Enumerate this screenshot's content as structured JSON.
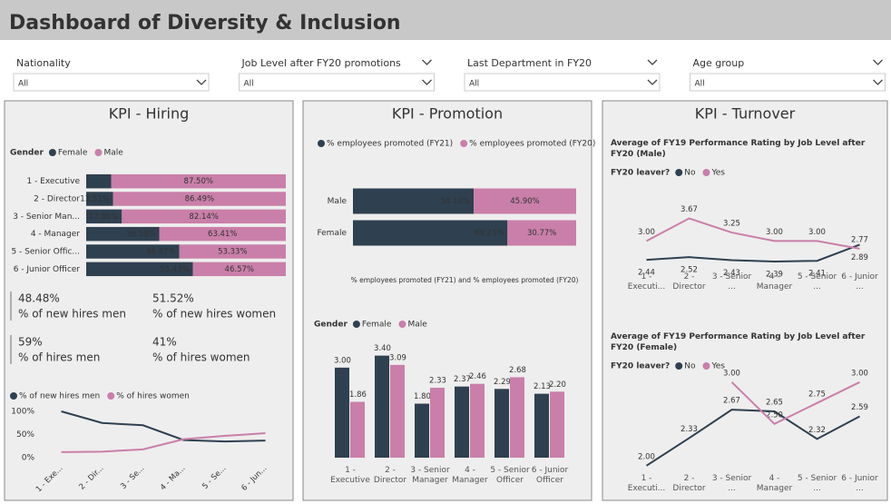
{
  "header": {
    "title": "Dashboard of Diversity & Inclusion"
  },
  "filters": [
    {
      "label": "Nationality",
      "value": "All"
    },
    {
      "label": "Job Level after FY20 promotions",
      "value": "All"
    },
    {
      "label": "Last Department in FY20",
      "value": "All"
    },
    {
      "label": "Age group",
      "value": "All"
    }
  ],
  "panels": [
    {
      "title": "KPI - Hiring"
    },
    {
      "title": "KPI - Promotion"
    },
    {
      "title": "KPI - Turnover"
    }
  ],
  "cards": [
    {
      "value": "48.48%",
      "label": "% of new hires men"
    },
    {
      "value": "51.52%",
      "label": "% of new hires women"
    },
    {
      "value": "59%",
      "label": "% of hires men"
    },
    {
      "value": "41%",
      "label": "% of hires women"
    }
  ],
  "chart_data": [
    {
      "type": "bar",
      "orientation": "horizontal",
      "stacked": true,
      "legend_title": "Gender",
      "categories": [
        "1 - Executive",
        "2 - Director",
        "3 - Senior Man...",
        "4 - Manager",
        "5 - Senior Offic...",
        "6 - Junior Officer"
      ],
      "series": [
        {
          "name": "Female",
          "color": "#2f4050",
          "values": [
            12.5,
            13.51,
            17.86,
            36.59,
            46.67,
            53.43
          ],
          "value_labels": [
            null,
            "13.51%",
            "17.86%",
            "36.59%",
            "46.67%",
            "53.43%"
          ]
        },
        {
          "name": "Male",
          "color": "#c97fa9",
          "values": [
            87.5,
            86.49,
            82.14,
            63.41,
            53.33,
            46.57
          ],
          "value_labels": [
            "87.50%",
            "86.49%",
            "82.14%",
            "63.41%",
            "53.33%",
            "46.57%"
          ]
        }
      ]
    },
    {
      "type": "line",
      "categories": [
        "1 - Exe...",
        "2 - Dir...",
        "3 - Se...",
        "4 - Ma...",
        "5 - Se...",
        "6 - Jun..."
      ],
      "series": [
        {
          "name": "% of new hires men",
          "color": "#2f4050",
          "values": [
            100,
            75,
            70,
            38,
            35,
            37
          ]
        },
        {
          "name": "% of hires women",
          "color": "#c97fa9",
          "values": [
            12,
            13,
            18,
            40,
            47,
            53
          ]
        }
      ],
      "ylim": [
        0,
        100
      ],
      "yticks": [
        {
          "value": 100,
          "label": "100%"
        },
        {
          "value": 50,
          "label": "50%"
        },
        {
          "value": 0,
          "label": "0%"
        }
      ]
    },
    {
      "type": "bar",
      "orientation": "horizontal",
      "stacked": true,
      "x_label": "% employees promoted (FY21) and % employees promoted (FY20)",
      "categories": [
        "Male",
        "Female"
      ],
      "series": [
        {
          "name": "% employees promoted (FY21)",
          "color": "#2f4050",
          "values": [
            54.1,
            69.23
          ],
          "value_labels": [
            "54.10%",
            "69.23%"
          ]
        },
        {
          "name": "% employees promoted (FY20)",
          "color": "#c97fa9",
          "values": [
            45.9,
            30.77
          ],
          "value_labels": [
            "45.90%",
            "30.77%"
          ]
        }
      ]
    },
    {
      "type": "bar",
      "orientation": "vertical",
      "legend_title": "Gender",
      "categories": [
        "1 - Executive",
        "2 - Director",
        "3 - Senior Manager",
        "4 - Manager",
        "5 - Senior Officer",
        "6 - Junior Officer"
      ],
      "series": [
        {
          "name": "Female",
          "color": "#2f4050",
          "values": [
            3.0,
            3.4,
            1.8,
            2.37,
            2.29,
            2.13
          ],
          "value_labels": [
            "3.00",
            "3.40",
            "1.80",
            "2.37",
            "2.29",
            "2.13"
          ]
        },
        {
          "name": "Male",
          "color": "#c97fa9",
          "values": [
            1.86,
            3.09,
            2.33,
            2.46,
            2.68,
            2.2
          ],
          "value_labels": [
            "1.86",
            "3.09",
            "2.33",
            "2.46",
            "2.68",
            "2.20"
          ]
        }
      ],
      "ylim": [
        0,
        3.6
      ]
    },
    {
      "type": "line",
      "title": "Average of FY19 Performance Rating by Job Level after FY20 (Male)",
      "legend_title": "FY20 leaver?",
      "categories": [
        "1 - Executi...",
        "2 - Director",
        "3 - Senior ...",
        "4 - Manager",
        "5 - Senior ...",
        "6 - Junior ..."
      ],
      "series": [
        {
          "name": "No",
          "color": "#2f4050",
          "values": [
            2.44,
            2.52,
            2.43,
            2.39,
            2.41,
            2.89
          ],
          "value_labels": [
            "2.44",
            "2.52",
            "2.43",
            "2.39",
            "2.41",
            "2.89"
          ]
        },
        {
          "name": "Yes",
          "color": "#c97fa9",
          "values": [
            3.0,
            3.67,
            3.25,
            3.0,
            3.0,
            2.77
          ],
          "value_labels": [
            "3.00",
            "3.67",
            "3.25",
            "3.00",
            "3.00",
            "2.77"
          ]
        }
      ],
      "ylim": [
        2.2,
        3.9
      ]
    },
    {
      "type": "line",
      "title": "Average of FY19 Performance Rating by Job Level after FY20 (Female)",
      "legend_title": "FY20 leaver?",
      "categories": [
        "1 - Executi...",
        "2 - Director",
        "3 - Senior ...",
        "4 - Manager",
        "5 - Senior ...",
        "6 - Junior ..."
      ],
      "series": [
        {
          "name": "No",
          "color": "#2f4050",
          "values": [
            2.0,
            2.33,
            2.67,
            2.65,
            2.32,
            2.59
          ],
          "value_labels": [
            "2.00",
            "2.33",
            "2.67",
            "2.65",
            "2.32",
            "2.59"
          ]
        },
        {
          "name": "Yes",
          "color": "#c97fa9",
          "values": [
            null,
            null,
            3.0,
            2.5,
            2.75,
            3.0
          ],
          "value_labels": [
            null,
            null,
            "3.00",
            "2.50",
            "2.75",
            "3.00"
          ]
        }
      ],
      "ylim": [
        1.9,
        3.15
      ]
    }
  ]
}
